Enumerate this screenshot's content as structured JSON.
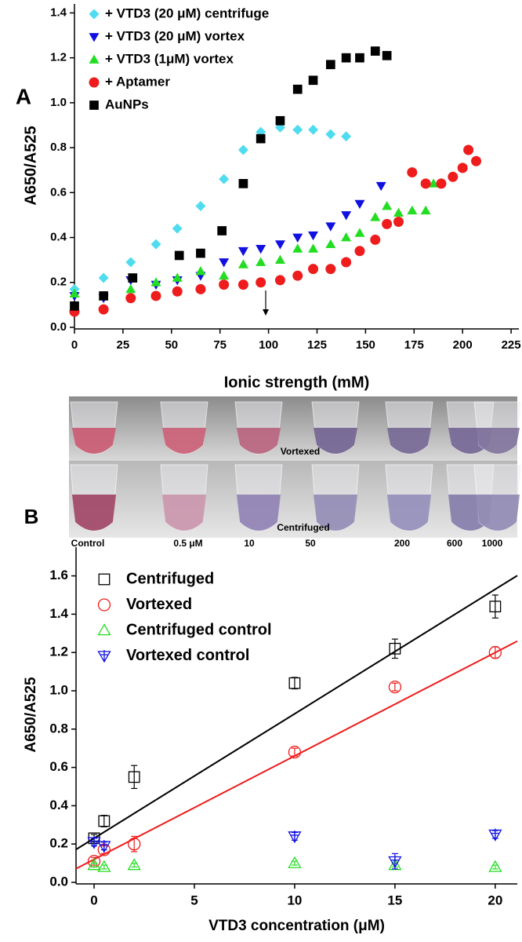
{
  "chart_data": [
    {
      "type": "scatter",
      "panel": "A",
      "xlabel": "Ionic strength (mM)",
      "ylabel": "A650/A525",
      "xlim": [
        0,
        229
      ],
      "ylim": [
        0,
        1.44
      ],
      "xticks": [
        0,
        25,
        50,
        75,
        100,
        125,
        150,
        175,
        200,
        225
      ],
      "yticks": [
        {
          "value": 0,
          "label": "0.0"
        },
        0.2,
        0.4,
        0.6,
        0.8,
        {
          "value": 1,
          "label": "1.0"
        },
        1.2,
        1.4
      ],
      "legend": "upper left",
      "markers_filled": true,
      "series": [
        {
          "name": "+ VTD3 (20 μM) centrifuge",
          "color": "#4fdcf0",
          "marker": "diamond",
          "x": [
            0,
            15,
            29,
            42,
            53,
            65,
            77,
            87,
            96,
            106,
            115,
            123,
            132,
            140
          ],
          "values": [
            0.17,
            0.22,
            0.29,
            0.37,
            0.44,
            0.54,
            0.66,
            0.79,
            0.87,
            0.89,
            0.88,
            0.88,
            0.86,
            0.85
          ]
        },
        {
          "name": "+ VTD3 (20 μM) vortex",
          "color": "#1010e0",
          "marker": "triangle-down",
          "x": [
            0,
            15,
            29,
            42,
            53,
            65,
            77,
            87,
            96,
            106,
            115,
            123,
            132,
            140,
            147,
            158
          ],
          "values": [
            0.14,
            0.13,
            0.21,
            0.19,
            0.21,
            0.23,
            0.29,
            0.34,
            0.35,
            0.37,
            0.4,
            0.41,
            0.45,
            0.5,
            0.55,
            0.63
          ]
        },
        {
          "name": "+ VTD3 (1μM) vortex",
          "color": "#22dd22",
          "marker": "triangle",
          "x": [
            0,
            15,
            29,
            42,
            53,
            65,
            77,
            87,
            96,
            106,
            115,
            123,
            132,
            140,
            147,
            155,
            161,
            167,
            174,
            181,
            185
          ],
          "values": [
            0.15,
            0.14,
            0.17,
            0.2,
            0.22,
            0.25,
            0.23,
            0.28,
            0.29,
            0.3,
            0.35,
            0.35,
            0.37,
            0.4,
            0.42,
            0.49,
            0.54,
            0.51,
            0.52,
            0.52,
            0.64
          ]
        },
        {
          "name": "+ Aptamer",
          "color": "#ee1c1c",
          "marker": "circle",
          "x": [
            0,
            15,
            29,
            42,
            53,
            65,
            77,
            87,
            96,
            106,
            115,
            123,
            132,
            140,
            147,
            155,
            161,
            167,
            174,
            181,
            189,
            195,
            200,
            203,
            207
          ],
          "values": [
            0.07,
            0.08,
            0.13,
            0.14,
            0.16,
            0.17,
            0.19,
            0.19,
            0.2,
            0.21,
            0.23,
            0.26,
            0.26,
            0.29,
            0.34,
            0.39,
            0.46,
            0.47,
            0.69,
            0.64,
            0.64,
            0.67,
            0.71,
            0.79,
            0.74
          ]
        },
        {
          "name": "AuNPs",
          "color": "#000000",
          "marker": "square",
          "x": [
            0,
            15,
            30,
            54,
            65,
            76,
            87,
            96,
            106,
            115,
            123,
            132,
            140,
            147,
            155,
            161
          ],
          "values": [
            0.095,
            0.14,
            0.22,
            0.32,
            0.33,
            0.43,
            0.64,
            0.84,
            0.92,
            1.06,
            1.1,
            1.17,
            1.2,
            1.2,
            1.23,
            1.21
          ]
        }
      ]
    },
    {
      "type": "scatter",
      "panel": "B",
      "xlabel": "VTD3 concentration (μM)",
      "ylabel": "A650/A525",
      "xlim": [
        -0.9,
        21.1
      ],
      "ylim": [
        0,
        1.75
      ],
      "xticks": [
        0,
        5,
        10,
        15,
        20
      ],
      "yticks": [
        {
          "value": 0,
          "label": "0.0"
        },
        0.2,
        0.4,
        0.6,
        0.8,
        {
          "value": 1,
          "label": "1.0"
        },
        1.2,
        1.4,
        1.6
      ],
      "legend": "upper left",
      "markers_filled": false,
      "series": [
        {
          "name": "Centrifuged",
          "color": "#000000",
          "marker": "square",
          "x": [
            0,
            0.5,
            2,
            10,
            15,
            20
          ],
          "values": [
            0.23,
            0.32,
            0.55,
            1.04,
            1.22,
            1.44
          ],
          "errors": [
            0.02,
            0.03,
            0.06,
            0.03,
            0.05,
            0.06
          ]
        },
        {
          "name": "Vortexed",
          "color": "#ee1c1c",
          "marker": "circle",
          "x": [
            0,
            0.5,
            2,
            10,
            15,
            20
          ],
          "values": [
            0.11,
            0.17,
            0.2,
            0.68,
            1.02,
            1.2
          ],
          "errors": [
            0.02,
            0.02,
            0.04,
            0.02,
            0.02,
            0.03
          ]
        },
        {
          "name": "Centrifuged control",
          "color": "#22dd22",
          "marker": "triangle",
          "x": [
            0,
            0.5,
            2,
            10,
            15,
            20
          ],
          "values": [
            0.09,
            0.08,
            0.09,
            0.1,
            0.09,
            0.08
          ],
          "errors": [
            0.01,
            0.01,
            0.01,
            0.01,
            0.01,
            0.01
          ]
        },
        {
          "name": "Vortexed control",
          "color": "#1010e0",
          "marker": "triangle-down-cross",
          "x": [
            0,
            0.5,
            10,
            15,
            20
          ],
          "values": [
            0.21,
            0.19,
            0.24,
            0.11,
            0.25
          ],
          "errors": [
            0.02,
            0.02,
            0.02,
            0.04,
            0.02
          ]
        }
      ],
      "fits": [
        {
          "color": "#000000",
          "slope": 0.065,
          "intercept": 0.23
        },
        {
          "color": "#ee1c1c",
          "slope": 0.054,
          "intercept": 0.12
        }
      ]
    }
  ],
  "photo": {
    "captions": [
      "Vortexed",
      "Centrifuged"
    ],
    "labels": [
      "Control",
      "0.5 μM",
      "10",
      "50",
      "200",
      "600",
      "1000"
    ]
  }
}
